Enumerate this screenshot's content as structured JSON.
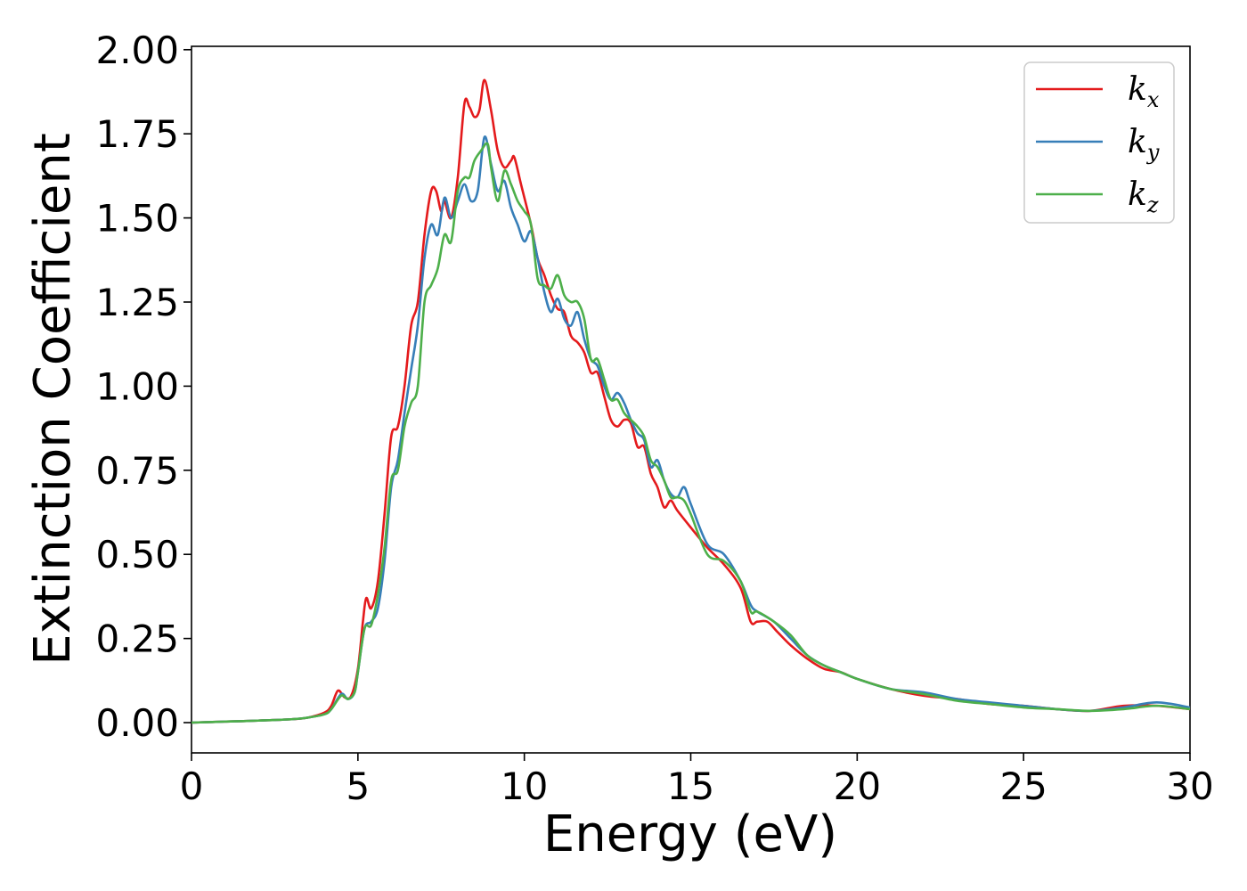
{
  "chart_data": {
    "type": "line",
    "xlabel": "Energy (eV)",
    "ylabel": "Extinction Coefficient",
    "xlim": [
      0,
      30
    ],
    "ylim": [
      -0.09,
      2.01
    ],
    "xticks": [
      0,
      5,
      10,
      15,
      20,
      25,
      30
    ],
    "xtick_labels": [
      "0",
      "5",
      "10",
      "15",
      "20",
      "25",
      "30"
    ],
    "yticks": [
      0.0,
      0.25,
      0.5,
      0.75,
      1.0,
      1.25,
      1.5,
      1.75,
      2.0
    ],
    "ytick_labels": [
      "0.00",
      "0.25",
      "0.50",
      "0.75",
      "1.00",
      "1.25",
      "1.50",
      "1.75",
      "2.00"
    ],
    "grid": false,
    "legend_position": "top-right",
    "series": [
      {
        "name": "k",
        "subscript": "x",
        "color": "#e41a1c",
        "points": [
          [
            0,
            0.0
          ],
          [
            1,
            0.003
          ],
          [
            2,
            0.006
          ],
          [
            3,
            0.01
          ],
          [
            3.5,
            0.015
          ],
          [
            4,
            0.03
          ],
          [
            4.2,
            0.05
          ],
          [
            4.4,
            0.095
          ],
          [
            4.6,
            0.075
          ],
          [
            4.8,
            0.08
          ],
          [
            5,
            0.16
          ],
          [
            5.15,
            0.3
          ],
          [
            5.25,
            0.37
          ],
          [
            5.4,
            0.34
          ],
          [
            5.6,
            0.42
          ],
          [
            5.8,
            0.62
          ],
          [
            6,
            0.85
          ],
          [
            6.2,
            0.88
          ],
          [
            6.4,
            1.0
          ],
          [
            6.6,
            1.18
          ],
          [
            6.8,
            1.25
          ],
          [
            7,
            1.45
          ],
          [
            7.2,
            1.58
          ],
          [
            7.35,
            1.58
          ],
          [
            7.5,
            1.52
          ],
          [
            7.6,
            1.55
          ],
          [
            7.8,
            1.5
          ],
          [
            8,
            1.62
          ],
          [
            8.2,
            1.84
          ],
          [
            8.35,
            1.83
          ],
          [
            8.5,
            1.8
          ],
          [
            8.65,
            1.82
          ],
          [
            8.8,
            1.91
          ],
          [
            9,
            1.82
          ],
          [
            9.2,
            1.7
          ],
          [
            9.4,
            1.65
          ],
          [
            9.6,
            1.67
          ],
          [
            9.7,
            1.68
          ],
          [
            9.9,
            1.6
          ],
          [
            10.2,
            1.48
          ],
          [
            10.4,
            1.38
          ],
          [
            10.6,
            1.33
          ],
          [
            10.8,
            1.27
          ],
          [
            11,
            1.23
          ],
          [
            11.2,
            1.22
          ],
          [
            11.4,
            1.15
          ],
          [
            11.6,
            1.13
          ],
          [
            11.8,
            1.1
          ],
          [
            12,
            1.04
          ],
          [
            12.2,
            1.04
          ],
          [
            12.4,
            0.97
          ],
          [
            12.6,
            0.9
          ],
          [
            12.8,
            0.88
          ],
          [
            13,
            0.9
          ],
          [
            13.2,
            0.89
          ],
          [
            13.4,
            0.82
          ],
          [
            13.6,
            0.82
          ],
          [
            13.8,
            0.74
          ],
          [
            14,
            0.7
          ],
          [
            14.2,
            0.64
          ],
          [
            14.4,
            0.66
          ],
          [
            14.6,
            0.63
          ],
          [
            15,
            0.58
          ],
          [
            15.5,
            0.52
          ],
          [
            16,
            0.47
          ],
          [
            16.5,
            0.4
          ],
          [
            16.8,
            0.3
          ],
          [
            17,
            0.3
          ],
          [
            17.3,
            0.3
          ],
          [
            17.6,
            0.27
          ],
          [
            18,
            0.23
          ],
          [
            18.5,
            0.19
          ],
          [
            19,
            0.16
          ],
          [
            19.5,
            0.15
          ],
          [
            20,
            0.13
          ],
          [
            21,
            0.1
          ],
          [
            22,
            0.08
          ],
          [
            23,
            0.07
          ],
          [
            24,
            0.055
          ],
          [
            25,
            0.05
          ],
          [
            26,
            0.04
          ],
          [
            27,
            0.035
          ],
          [
            28,
            0.05
          ],
          [
            29,
            0.05
          ],
          [
            30,
            0.04
          ]
        ]
      },
      {
        "name": "k",
        "subscript": "y",
        "color": "#377eb8",
        "points": [
          [
            0,
            0.0
          ],
          [
            1,
            0.003
          ],
          [
            2,
            0.006
          ],
          [
            3,
            0.01
          ],
          [
            3.5,
            0.015
          ],
          [
            4,
            0.025
          ],
          [
            4.2,
            0.04
          ],
          [
            4.5,
            0.085
          ],
          [
            4.7,
            0.07
          ],
          [
            4.9,
            0.09
          ],
          [
            5,
            0.15
          ],
          [
            5.2,
            0.28
          ],
          [
            5.4,
            0.3
          ],
          [
            5.6,
            0.34
          ],
          [
            5.8,
            0.48
          ],
          [
            6,
            0.7
          ],
          [
            6.2,
            0.78
          ],
          [
            6.4,
            0.92
          ],
          [
            6.6,
            1.05
          ],
          [
            6.8,
            1.18
          ],
          [
            7,
            1.38
          ],
          [
            7.2,
            1.48
          ],
          [
            7.4,
            1.45
          ],
          [
            7.6,
            1.56
          ],
          [
            7.8,
            1.5
          ],
          [
            8,
            1.55
          ],
          [
            8.2,
            1.6
          ],
          [
            8.4,
            1.55
          ],
          [
            8.6,
            1.58
          ],
          [
            8.8,
            1.74
          ],
          [
            9,
            1.66
          ],
          [
            9.2,
            1.58
          ],
          [
            9.4,
            1.61
          ],
          [
            9.6,
            1.53
          ],
          [
            9.8,
            1.48
          ],
          [
            10,
            1.43
          ],
          [
            10.2,
            1.46
          ],
          [
            10.4,
            1.38
          ],
          [
            10.6,
            1.28
          ],
          [
            10.8,
            1.22
          ],
          [
            11,
            1.26
          ],
          [
            11.2,
            1.2
          ],
          [
            11.4,
            1.18
          ],
          [
            11.6,
            1.22
          ],
          [
            11.8,
            1.14
          ],
          [
            12,
            1.08
          ],
          [
            12.2,
            1.06
          ],
          [
            12.4,
            1.0
          ],
          [
            12.6,
            0.96
          ],
          [
            12.8,
            0.98
          ],
          [
            13,
            0.95
          ],
          [
            13.2,
            0.9
          ],
          [
            13.4,
            0.86
          ],
          [
            13.6,
            0.84
          ],
          [
            13.8,
            0.76
          ],
          [
            14,
            0.78
          ],
          [
            14.2,
            0.72
          ],
          [
            14.4,
            0.68
          ],
          [
            14.6,
            0.67
          ],
          [
            14.8,
            0.7
          ],
          [
            15,
            0.65
          ],
          [
            15.5,
            0.53
          ],
          [
            16,
            0.5
          ],
          [
            16.5,
            0.42
          ],
          [
            16.8,
            0.35
          ],
          [
            17,
            0.33
          ],
          [
            17.5,
            0.3
          ],
          [
            18,
            0.25
          ],
          [
            18.5,
            0.2
          ],
          [
            19,
            0.17
          ],
          [
            19.5,
            0.15
          ],
          [
            20,
            0.13
          ],
          [
            21,
            0.1
          ],
          [
            22,
            0.09
          ],
          [
            23,
            0.07
          ],
          [
            24,
            0.06
          ],
          [
            25,
            0.05
          ],
          [
            26,
            0.04
          ],
          [
            27,
            0.035
          ],
          [
            28,
            0.045
          ],
          [
            29,
            0.06
          ],
          [
            30,
            0.045
          ]
        ]
      },
      {
        "name": "k",
        "subscript": "z",
        "color": "#4daf4a",
        "points": [
          [
            0,
            0.0
          ],
          [
            1,
            0.003
          ],
          [
            2,
            0.006
          ],
          [
            3,
            0.01
          ],
          [
            3.5,
            0.015
          ],
          [
            4,
            0.025
          ],
          [
            4.2,
            0.04
          ],
          [
            4.5,
            0.08
          ],
          [
            4.7,
            0.07
          ],
          [
            4.9,
            0.09
          ],
          [
            5,
            0.15
          ],
          [
            5.2,
            0.28
          ],
          [
            5.4,
            0.29
          ],
          [
            5.6,
            0.38
          ],
          [
            5.8,
            0.52
          ],
          [
            6,
            0.72
          ],
          [
            6.2,
            0.75
          ],
          [
            6.4,
            0.88
          ],
          [
            6.6,
            0.95
          ],
          [
            6.8,
            1.0
          ],
          [
            7,
            1.25
          ],
          [
            7.2,
            1.3
          ],
          [
            7.4,
            1.35
          ],
          [
            7.6,
            1.45
          ],
          [
            7.8,
            1.43
          ],
          [
            8,
            1.58
          ],
          [
            8.2,
            1.62
          ],
          [
            8.35,
            1.62
          ],
          [
            8.5,
            1.67
          ],
          [
            8.7,
            1.7
          ],
          [
            8.9,
            1.72
          ],
          [
            9,
            1.65
          ],
          [
            9.2,
            1.55
          ],
          [
            9.4,
            1.64
          ],
          [
            9.6,
            1.6
          ],
          [
            9.8,
            1.55
          ],
          [
            10,
            1.52
          ],
          [
            10.2,
            1.48
          ],
          [
            10.4,
            1.32
          ],
          [
            10.6,
            1.3
          ],
          [
            10.8,
            1.29
          ],
          [
            11,
            1.33
          ],
          [
            11.2,
            1.27
          ],
          [
            11.4,
            1.25
          ],
          [
            11.6,
            1.25
          ],
          [
            11.8,
            1.2
          ],
          [
            12,
            1.08
          ],
          [
            12.2,
            1.08
          ],
          [
            12.4,
            1.02
          ],
          [
            12.6,
            0.96
          ],
          [
            12.8,
            0.96
          ],
          [
            13,
            0.92
          ],
          [
            13.2,
            0.9
          ],
          [
            13.4,
            0.88
          ],
          [
            13.6,
            0.85
          ],
          [
            13.8,
            0.78
          ],
          [
            14,
            0.76
          ],
          [
            14.2,
            0.72
          ],
          [
            14.4,
            0.67
          ],
          [
            14.6,
            0.67
          ],
          [
            14.8,
            0.66
          ],
          [
            15,
            0.62
          ],
          [
            15.5,
            0.5
          ],
          [
            16,
            0.48
          ],
          [
            16.5,
            0.42
          ],
          [
            16.8,
            0.33
          ],
          [
            17,
            0.33
          ],
          [
            17.5,
            0.3
          ],
          [
            18,
            0.26
          ],
          [
            18.5,
            0.2
          ],
          [
            19,
            0.17
          ],
          [
            19.5,
            0.15
          ],
          [
            20,
            0.13
          ],
          [
            21,
            0.1
          ],
          [
            22,
            0.085
          ],
          [
            23,
            0.065
          ],
          [
            24,
            0.055
          ],
          [
            25,
            0.045
          ],
          [
            26,
            0.04
          ],
          [
            27,
            0.035
          ],
          [
            28,
            0.04
          ],
          [
            29,
            0.05
          ],
          [
            30,
            0.04
          ]
        ]
      }
    ]
  }
}
